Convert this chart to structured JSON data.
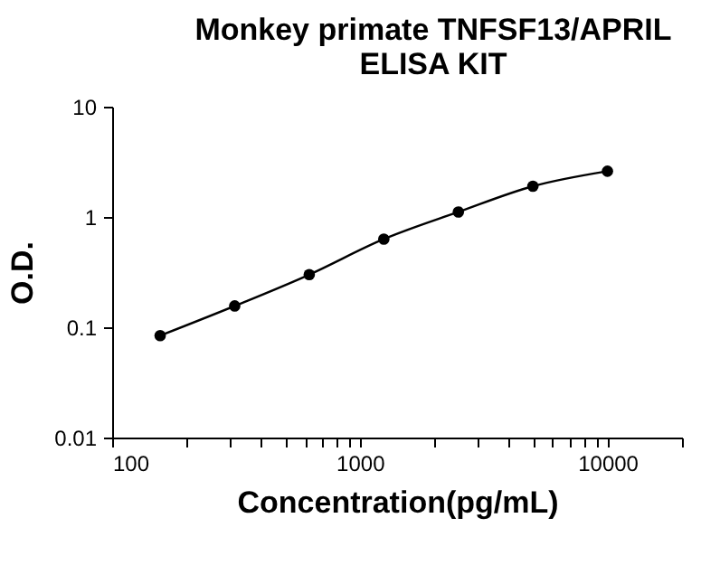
{
  "chart_data": {
    "type": "line",
    "title": "Monkey primate TNFSF13/APRIL\nELISA KIT",
    "xlabel": "Concentration(pg/mL)",
    "ylabel": "O.D.",
    "x": [
      156.25,
      312.5,
      625,
      1250,
      2500,
      5000,
      10000
    ],
    "series": [
      {
        "color": "#000000",
        "values": [
          0.084,
          0.156,
          0.3,
          0.63,
          1.11,
          1.9,
          2.6
        ]
      }
    ],
    "log": "xy",
    "xlim": [
      100,
      20000
    ],
    "ylim": [
      0.01,
      10
    ],
    "xticks": [
      100,
      {
        "value": 200,
        "label": null
      },
      {
        "value": 300,
        "label": null
      },
      {
        "value": 400,
        "label": null
      },
      {
        "value": 500,
        "label": null
      },
      {
        "value": 600,
        "label": null
      },
      {
        "value": 700,
        "label": null
      },
      {
        "value": 800,
        "label": null
      },
      {
        "value": 900,
        "label": null
      },
      1000,
      {
        "value": 2000,
        "label": null
      },
      {
        "value": 3000,
        "label": null
      },
      {
        "value": 4000,
        "label": null
      },
      {
        "value": 5000,
        "label": null
      },
      {
        "value": 6000,
        "label": null
      },
      {
        "value": 7000,
        "label": null
      },
      {
        "value": 8000,
        "label": null
      },
      {
        "value": 9000,
        "label": null
      },
      10000,
      {
        "value": 20000,
        "label": null
      }
    ],
    "yticks": [
      0.01,
      0.1,
      1,
      10
    ],
    "grid": false,
    "marker": "circle",
    "line_style": "solid"
  }
}
